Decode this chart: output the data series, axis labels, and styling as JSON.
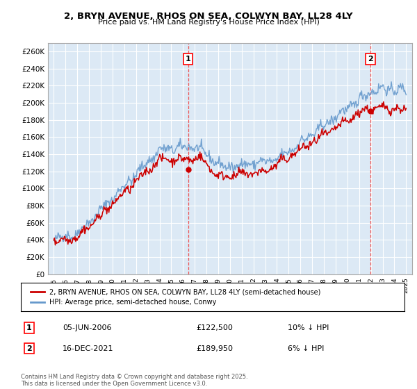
{
  "title": "2, BRYN AVENUE, RHOS ON SEA, COLWYN BAY, LL28 4LY",
  "subtitle": "Price paid vs. HM Land Registry's House Price Index (HPI)",
  "ylabel_ticks": [
    "£0",
    "£20K",
    "£40K",
    "£60K",
    "£80K",
    "£100K",
    "£120K",
    "£140K",
    "£160K",
    "£180K",
    "£200K",
    "£220K",
    "£240K",
    "£260K"
  ],
  "ytick_values": [
    0,
    20000,
    40000,
    60000,
    80000,
    100000,
    120000,
    140000,
    160000,
    180000,
    200000,
    220000,
    240000,
    260000
  ],
  "ylim": [
    0,
    270000
  ],
  "xlim_start": 1994.5,
  "xlim_end": 2025.5,
  "background_color": "#dce9f5",
  "fig_bg_color": "#ffffff",
  "grid_color": "#ffffff",
  "hpi_color": "#6699cc",
  "price_color": "#cc0000",
  "marker1_x": 2006.43,
  "marker1_y": 122500,
  "marker1_label": "1",
  "marker2_x": 2021.96,
  "marker2_y": 189950,
  "marker2_label": "2",
  "vline_color": "#ee4444",
  "legend_price_label": "2, BRYN AVENUE, RHOS ON SEA, COLWYN BAY, LL28 4LY (semi-detached house)",
  "legend_hpi_label": "HPI: Average price, semi-detached house, Conwy",
  "annotation1_date": "05-JUN-2006",
  "annotation1_price": "£122,500",
  "annotation1_hpi": "10% ↓ HPI",
  "annotation2_date": "16-DEC-2021",
  "annotation2_price": "£189,950",
  "annotation2_hpi": "6% ↓ HPI",
  "footer": "Contains HM Land Registry data © Crown copyright and database right 2025.\nThis data is licensed under the Open Government Licence v3.0.",
  "xtick_years": [
    1995,
    1996,
    1997,
    1998,
    1999,
    2000,
    2001,
    2002,
    2003,
    2004,
    2005,
    2006,
    2007,
    2008,
    2009,
    2010,
    2011,
    2012,
    2013,
    2014,
    2015,
    2016,
    2017,
    2018,
    2019,
    2020,
    2021,
    2022,
    2023,
    2024,
    2025
  ]
}
